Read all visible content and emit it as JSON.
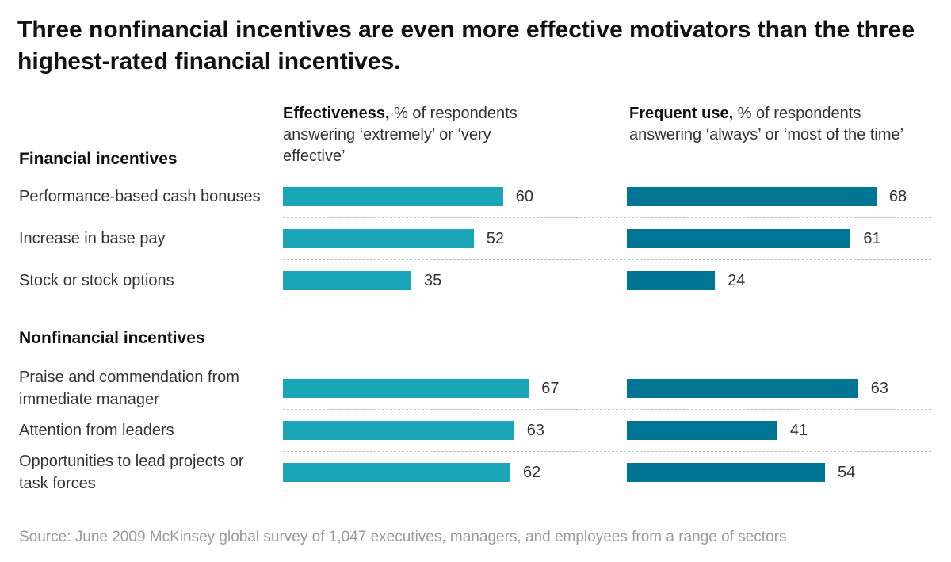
{
  "title": "Three nonfinancial incentives are even more effective motivators than the three highest-rated financial incentives.",
  "colors": {
    "effectiveness": "#1aa5b8",
    "frequent_use": "#007594"
  },
  "chart_data": {
    "type": "bar",
    "orientation": "horizontal",
    "title": "Three nonfinancial incentives are even more effective motivators than the three highest-rated financial incentives.",
    "columns": [
      {
        "key": "effectiveness",
        "bold": "Effectiveness,",
        "rest": "% of respondents answering ‘extremely’ or ‘very effective’"
      },
      {
        "key": "frequent_use",
        "bold": "Frequent use,",
        "rest": "% of respondents answering ‘always’ or ‘most of the time’"
      }
    ],
    "groups": [
      {
        "name": "Financial incentives",
        "categories": [
          "Performance-based cash bonuses",
          "Increase in base pay",
          "Stock or stock options"
        ],
        "series": [
          {
            "name": "Effectiveness",
            "values": [
              60,
              52,
              35
            ]
          },
          {
            "name": "Frequent use",
            "values": [
              68,
              61,
              24
            ]
          }
        ]
      },
      {
        "name": "Nonfinancial incentives",
        "categories": [
          "Praise and commendation from immediate manager",
          "Attention from leaders",
          "Opportunities to lead projects or task forces"
        ],
        "series": [
          {
            "name": "Effectiveness",
            "values": [
              67,
              63,
              62
            ]
          },
          {
            "name": "Frequent use",
            "values": [
              63,
              41,
              54
            ]
          }
        ]
      }
    ],
    "xlim": [
      0,
      100
    ]
  },
  "source": "Source: June 2009 McKinsey global survey of 1,047 executives, managers, and employees from a range of sectors"
}
